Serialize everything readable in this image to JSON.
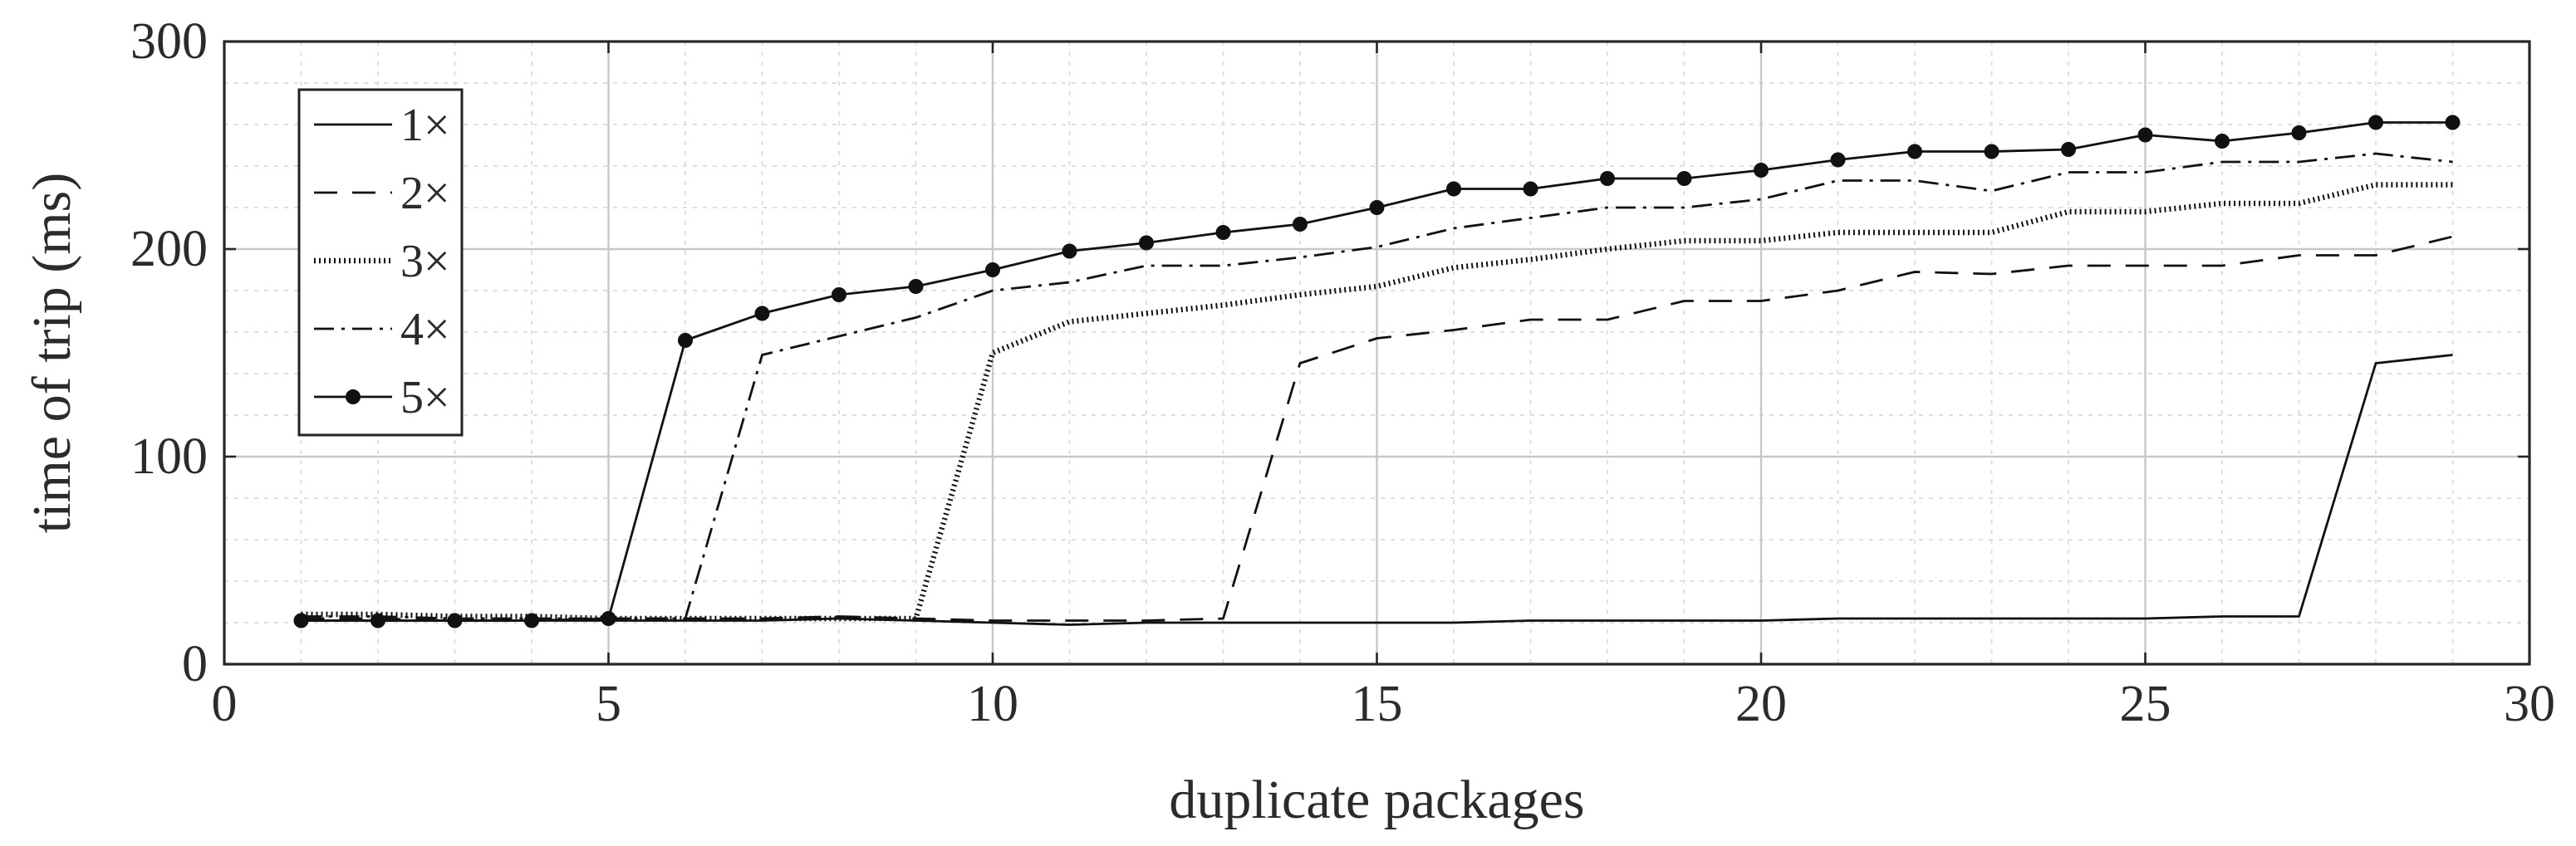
{
  "chart_data": {
    "type": "line",
    "title": "",
    "xlabel": "duplicate packages",
    "ylabel": "time of trip (ms)",
    "xlim": [
      0,
      30
    ],
    "ylim": [
      0,
      300
    ],
    "xticks": [
      0,
      5,
      10,
      15,
      20,
      25,
      30
    ],
    "yticks": [
      0,
      100,
      200,
      300
    ],
    "x_minor_step": 1,
    "y_minor_step": 20,
    "grid": true,
    "legend_position": "top-left",
    "series": [
      {
        "name": "1×",
        "style": "solid",
        "marker": "none",
        "x": [
          1,
          2,
          3,
          4,
          5,
          6,
          7,
          8,
          9,
          10,
          11,
          12,
          13,
          14,
          15,
          16,
          17,
          18,
          19,
          20,
          21,
          22,
          23,
          24,
          25,
          26,
          27,
          28,
          29
        ],
        "y": [
          21,
          21,
          21,
          21,
          21,
          21,
          21,
          22,
          21,
          20,
          19,
          20,
          20,
          20,
          20,
          20,
          21,
          21,
          21,
          21,
          22,
          22,
          22,
          22,
          22,
          23,
          23,
          145,
          149
        ]
      },
      {
        "name": "2×",
        "style": "dashed",
        "marker": "none",
        "x": [
          1,
          2,
          3,
          4,
          5,
          6,
          7,
          8,
          9,
          10,
          11,
          12,
          13,
          14,
          15,
          16,
          17,
          18,
          19,
          20,
          21,
          22,
          23,
          24,
          25,
          26,
          27,
          28,
          29
        ],
        "y": [
          22,
          22,
          21,
          21,
          22,
          22,
          22,
          23,
          22,
          21,
          21,
          21,
          22,
          145,
          157,
          161,
          166,
          166,
          175,
          175,
          180,
          189,
          188,
          192,
          192,
          192,
          197,
          197,
          206
        ]
      },
      {
        "name": "3×",
        "style": "dotted",
        "marker": "none",
        "x": [
          1,
          2,
          3,
          4,
          5,
          6,
          7,
          8,
          9,
          10,
          11,
          12,
          13,
          14,
          15,
          16,
          17,
          18,
          19,
          20,
          21,
          22,
          23,
          24,
          25,
          26,
          27,
          28,
          29
        ],
        "y": [
          24,
          24,
          23,
          23,
          22,
          22,
          22,
          22,
          22,
          150,
          165,
          169,
          173,
          178,
          182,
          191,
          195,
          200,
          204,
          204,
          208,
          208,
          208,
          218,
          218,
          222,
          222,
          231,
          231
        ]
      },
      {
        "name": "4×",
        "style": "dashdot",
        "marker": "none",
        "x": [
          1,
          2,
          3,
          4,
          5,
          6,
          7,
          8,
          9,
          10,
          11,
          12,
          13,
          14,
          15,
          16,
          17,
          18,
          19,
          20,
          21,
          22,
          23,
          24,
          25,
          26,
          27,
          28,
          29
        ],
        "y": [
          23,
          23,
          22,
          22,
          22,
          22,
          149,
          158,
          167,
          180,
          184,
          192,
          192,
          196,
          201,
          210,
          215,
          220,
          220,
          224,
          233,
          233,
          228,
          237,
          237,
          242,
          242,
          246,
          242
        ]
      },
      {
        "name": "5×",
        "style": "solid",
        "marker": "circle",
        "x": [
          1,
          2,
          3,
          4,
          5,
          6,
          7,
          8,
          9,
          10,
          11,
          12,
          13,
          14,
          15,
          16,
          17,
          18,
          19,
          20,
          21,
          22,
          23,
          24,
          25,
          26,
          27,
          28,
          29
        ],
        "y": [
          21,
          21,
          21,
          21,
          22,
          156,
          169,
          178,
          182,
          190,
          199,
          203,
          208,
          212,
          220,
          229,
          229,
          234,
          234,
          238,
          243,
          247,
          247,
          248,
          255,
          252,
          256,
          261,
          261
        ]
      }
    ]
  }
}
